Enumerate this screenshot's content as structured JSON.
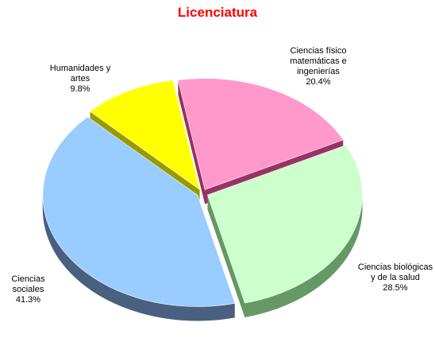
{
  "chart_data": {
    "type": "pie",
    "title": "Licenciatura",
    "categories": [
      "Ciencias físico matemáticas e ingenierías",
      "Ciencias biológicas y de la salud",
      "Ciencias sociales",
      "Humanidades y artes"
    ],
    "values": [
      20.4,
      28.5,
      41.3,
      9.8
    ],
    "value_labels": [
      "20.4%",
      "28.5%",
      "41.3%",
      "9.8%"
    ],
    "colors": [
      "#ff99cc",
      "#ccffcc",
      "#99ccff",
      "#ffff00"
    ]
  }
}
